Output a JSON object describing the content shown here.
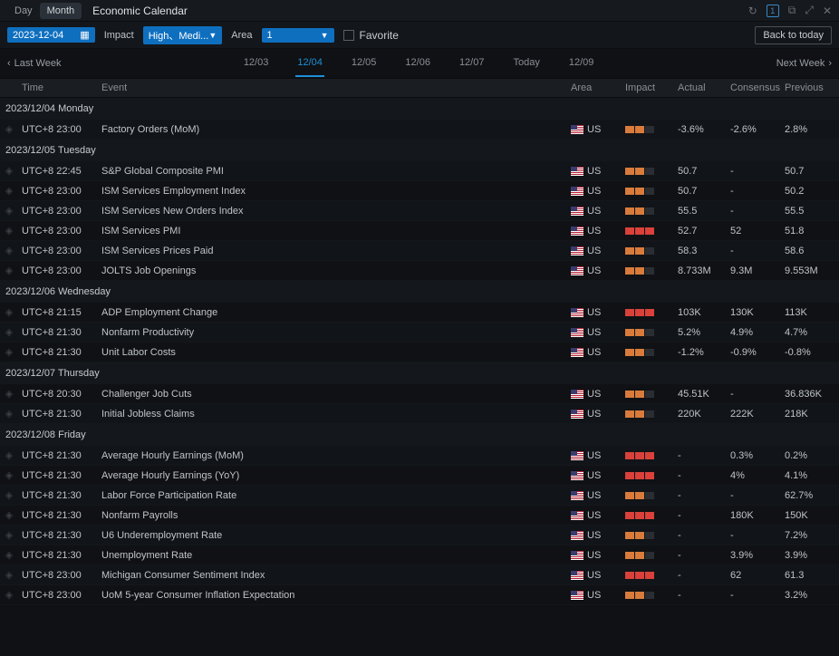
{
  "titlebar": {
    "tab_day": "Day",
    "tab_month": "Month",
    "title": "Economic Calendar"
  },
  "filter": {
    "date_value": "2023-12-04",
    "impact_label": "Impact",
    "impact_value": "High、Medi...",
    "area_label": "Area",
    "area_value": "1",
    "favorite_label": "Favorite",
    "back_today": "Back to today"
  },
  "weeknav": {
    "last": "Last Week",
    "next": "Next Week",
    "dates": [
      "12/03",
      "12/04",
      "12/05",
      "12/06",
      "12/07",
      "Today",
      "12/09"
    ],
    "active_index": 1
  },
  "columns": {
    "time": "Time",
    "event": "Event",
    "area": "Area",
    "impact": "Impact",
    "actual": "Actual",
    "consensus": "Consensus",
    "previous": "Previous"
  },
  "colors": {
    "impact_red": "#d9413a",
    "impact_orange": "#d97b3a",
    "impact_none": "#2a2e33"
  },
  "days": [
    {
      "header": "2023/12/04 Monday",
      "rows": [
        {
          "time": "UTC+8 23:00",
          "event": "Factory Orders (MoM)",
          "area": "US",
          "impact": 2,
          "actual": "-3.6%",
          "consensus": "-2.6%",
          "previous": "2.8%"
        }
      ]
    },
    {
      "header": "2023/12/05 Tuesday",
      "rows": [
        {
          "time": "UTC+8 22:45",
          "event": "S&P Global Composite PMI",
          "area": "US",
          "impact": 2,
          "actual": "50.7",
          "consensus": "-",
          "previous": "50.7"
        },
        {
          "time": "UTC+8 23:00",
          "event": "ISM Services Employment Index",
          "area": "US",
          "impact": 2,
          "actual": "50.7",
          "consensus": "-",
          "previous": "50.2"
        },
        {
          "time": "UTC+8 23:00",
          "event": "ISM Services New Orders Index",
          "area": "US",
          "impact": 2,
          "actual": "55.5",
          "consensus": "-",
          "previous": "55.5"
        },
        {
          "time": "UTC+8 23:00",
          "event": "ISM Services PMI",
          "area": "US",
          "impact": 3,
          "actual": "52.7",
          "consensus": "52",
          "previous": "51.8"
        },
        {
          "time": "UTC+8 23:00",
          "event": "ISM Services Prices Paid",
          "area": "US",
          "impact": 2,
          "actual": "58.3",
          "consensus": "-",
          "previous": "58.6"
        },
        {
          "time": "UTC+8 23:00",
          "event": "JOLTS Job Openings",
          "area": "US",
          "impact": 2,
          "actual": "8.733M",
          "consensus": "9.3M",
          "previous": "9.553M"
        }
      ]
    },
    {
      "header": "2023/12/06 Wednesday",
      "rows": [
        {
          "time": "UTC+8 21:15",
          "event": "ADP Employment Change",
          "area": "US",
          "impact": 3,
          "actual": "103K",
          "consensus": "130K",
          "previous": "113K"
        },
        {
          "time": "UTC+8 21:30",
          "event": "Nonfarm Productivity",
          "area": "US",
          "impact": 2,
          "actual": "5.2%",
          "consensus": "4.9%",
          "previous": "4.7%"
        },
        {
          "time": "UTC+8 21:30",
          "event": "Unit Labor Costs",
          "area": "US",
          "impact": 2,
          "actual": "-1.2%",
          "consensus": "-0.9%",
          "previous": "-0.8%"
        }
      ]
    },
    {
      "header": "2023/12/07 Thursday",
      "rows": [
        {
          "time": "UTC+8 20:30",
          "event": "Challenger Job Cuts",
          "area": "US",
          "impact": 2,
          "actual": "45.51K",
          "consensus": "-",
          "previous": "36.836K"
        },
        {
          "time": "UTC+8 21:30",
          "event": "Initial Jobless Claims",
          "area": "US",
          "impact": 2,
          "actual": "220K",
          "consensus": "222K",
          "previous": "218K"
        }
      ]
    },
    {
      "header": "2023/12/08 Friday",
      "rows": [
        {
          "time": "UTC+8 21:30",
          "event": "Average Hourly Earnings (MoM)",
          "area": "US",
          "impact": 3,
          "actual": "-",
          "consensus": "0.3%",
          "previous": "0.2%"
        },
        {
          "time": "UTC+8 21:30",
          "event": "Average Hourly Earnings (YoY)",
          "area": "US",
          "impact": 3,
          "actual": "-",
          "consensus": "4%",
          "previous": "4.1%"
        },
        {
          "time": "UTC+8 21:30",
          "event": "Labor Force Participation Rate",
          "area": "US",
          "impact": 2,
          "actual": "-",
          "consensus": "-",
          "previous": "62.7%"
        },
        {
          "time": "UTC+8 21:30",
          "event": "Nonfarm Payrolls",
          "area": "US",
          "impact": 3,
          "actual": "-",
          "consensus": "180K",
          "previous": "150K"
        },
        {
          "time": "UTC+8 21:30",
          "event": "U6 Underemployment Rate",
          "area": "US",
          "impact": 2,
          "actual": "-",
          "consensus": "-",
          "previous": "7.2%"
        },
        {
          "time": "UTC+8 21:30",
          "event": "Unemployment Rate",
          "area": "US",
          "impact": 2,
          "actual": "-",
          "consensus": "3.9%",
          "previous": "3.9%"
        },
        {
          "time": "UTC+8 23:00",
          "event": "Michigan Consumer Sentiment Index",
          "area": "US",
          "impact": 3,
          "actual": "-",
          "consensus": "62",
          "previous": "61.3"
        },
        {
          "time": "UTC+8 23:00",
          "event": "UoM 5-year Consumer Inflation Expectation",
          "area": "US",
          "impact": 2,
          "actual": "-",
          "consensus": "-",
          "previous": "3.2%"
        }
      ]
    }
  ]
}
